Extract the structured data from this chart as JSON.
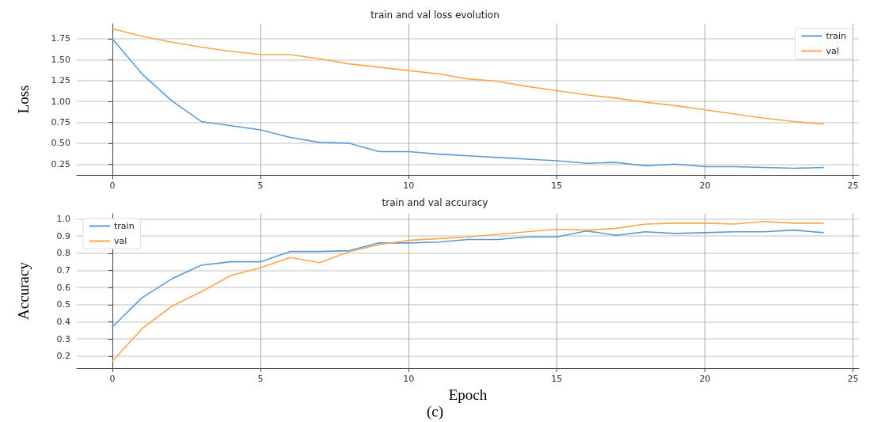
{
  "chart_data": [
    {
      "type": "line",
      "title": "train and val loss evolution",
      "ylabel": "Loss",
      "x": [
        0,
        1,
        2,
        3,
        4,
        5,
        6,
        7,
        8,
        9,
        10,
        11,
        12,
        13,
        14,
        15,
        16,
        17,
        18,
        19,
        20,
        21,
        22,
        23,
        24
      ],
      "series": [
        {
          "name": "train",
          "color": "#5b9bd5",
          "values": [
            1.75,
            1.33,
            1.01,
            0.76,
            0.71,
            0.66,
            0.57,
            0.51,
            0.5,
            0.4,
            0.4,
            0.37,
            0.35,
            0.33,
            0.31,
            0.29,
            0.26,
            0.27,
            0.23,
            0.25,
            0.22,
            0.22,
            0.21,
            0.2,
            0.21
          ]
        },
        {
          "name": "val",
          "color": "#ffa64d",
          "values": [
            1.87,
            1.78,
            1.71,
            1.65,
            1.6,
            1.56,
            1.56,
            1.51,
            1.45,
            1.41,
            1.37,
            1.33,
            1.27,
            1.24,
            1.18,
            1.13,
            1.08,
            1.04,
            0.99,
            0.95,
            0.9,
            0.85,
            0.8,
            0.76,
            0.73
          ]
        }
      ],
      "xlim": [
        -1.2,
        25.2
      ],
      "xticks": [
        0,
        5,
        10,
        15,
        20,
        25
      ],
      "ylim": [
        0.12,
        1.93
      ],
      "yticks": [
        0.25,
        {
          "value": 0.5,
          "label": "0.50"
        },
        0.75,
        {
          "value": 1,
          "label": "1.00"
        },
        1.25,
        {
          "value": 1.5,
          "label": "1.50"
        },
        1.75
      ],
      "grid": true,
      "legend": "top right",
      "marker": "none",
      "line_style": "solid"
    },
    {
      "type": "line",
      "title": "train and val accuracy",
      "xlabel": "Epoch",
      "ylabel": "Accuracy",
      "annotations": [
        "(c)"
      ],
      "x": [
        0,
        1,
        2,
        3,
        4,
        5,
        6,
        7,
        8,
        9,
        10,
        11,
        12,
        13,
        14,
        15,
        16,
        17,
        18,
        19,
        20,
        21,
        22,
        23,
        24
      ],
      "series": [
        {
          "name": "train",
          "color": "#5b9bd5",
          "values": [
            0.37,
            0.54,
            0.65,
            0.73,
            0.75,
            0.75,
            0.81,
            0.81,
            0.815,
            0.86,
            0.86,
            0.865,
            0.88,
            0.88,
            0.895,
            0.895,
            0.93,
            0.905,
            0.925,
            0.915,
            0.92,
            0.925,
            0.925,
            0.935,
            0.92
          ]
        },
        {
          "name": "val",
          "color": "#ffa64d",
          "values": [
            0.17,
            0.36,
            0.49,
            0.575,
            0.67,
            0.715,
            0.775,
            0.745,
            0.81,
            0.85,
            0.875,
            0.885,
            0.895,
            0.91,
            0.925,
            0.94,
            0.935,
            0.945,
            0.97,
            0.975,
            0.975,
            0.97,
            0.985,
            0.975,
            0.975
          ]
        }
      ],
      "xlim": [
        -1.2,
        25.2
      ],
      "xticks": [
        0,
        5,
        10,
        15,
        20,
        25
      ],
      "ylim": [
        0.13,
        1.03
      ],
      "yticks": [
        0.2,
        0.3,
        0.4,
        0.5,
        0.6,
        0.7,
        0.8,
        0.9,
        {
          "value": 1,
          "label": "1.0"
        }
      ],
      "grid": true,
      "legend": "top left",
      "marker": "none",
      "line_style": "solid"
    }
  ]
}
